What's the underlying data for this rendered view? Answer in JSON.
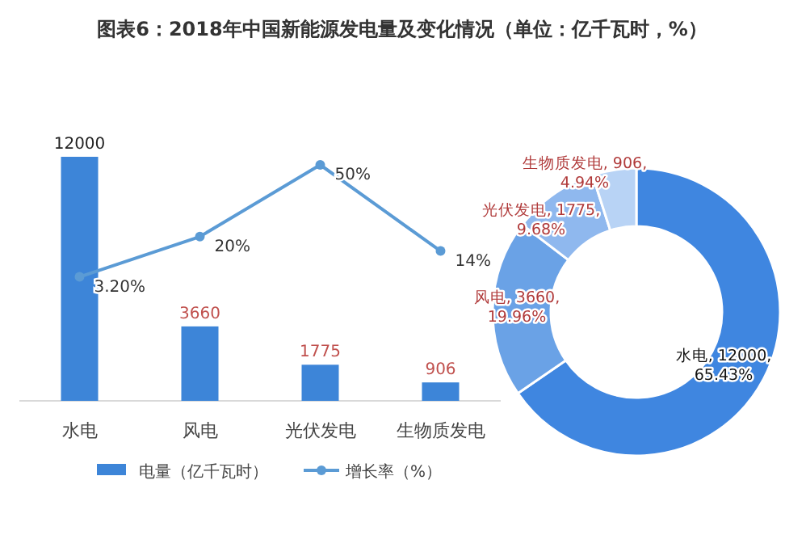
{
  "chart_data": [
    {
      "type": "bar",
      "title": "图表6：2018年中国新能源发电量及变化情况（单位：亿千瓦时，%）",
      "categories": [
        "水电",
        "风电",
        "光伏发电",
        "生物质发电"
      ],
      "legend": "bottom",
      "series": [
        {
          "name": "电量（亿千瓦时）",
          "color": "#3d85d8",
          "values": [
            12000,
            3660,
            1775,
            906
          ],
          "value_labels": [
            "12000",
            "3660",
            "1775",
            "906"
          ]
        },
        {
          "name": "增长率（%）",
          "type": "line",
          "axis": "y2",
          "marker": "circle",
          "color": "#5b9bd5",
          "values": [
            3.2,
            20,
            50,
            14
          ],
          "value_labels": [
            "3.20%",
            "20%",
            "50%",
            "14%"
          ]
        }
      ]
    },
    {
      "type": "donut",
      "categories": [
        "水电",
        "风电",
        "光伏发电",
        "生物质发电"
      ],
      "values": [
        12000,
        3660,
        1775,
        906
      ],
      "colors": [
        "#3f86e0",
        "#6aa2e6",
        "#8fb8ee",
        "#b8d3f5"
      ],
      "value_labels": [
        "12000, 65.43%",
        "3660, 19.96%",
        "1775, 9.68%",
        "906, 4.94%"
      ]
    }
  ]
}
